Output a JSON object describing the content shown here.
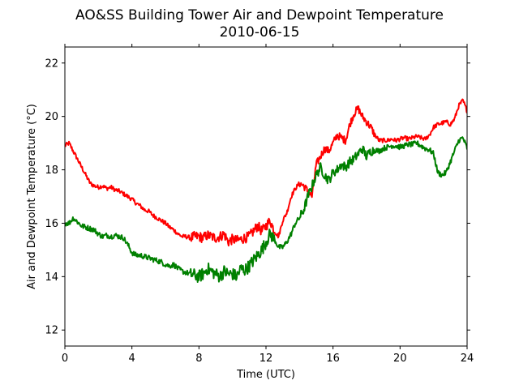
{
  "chart_data": {
    "type": "line",
    "title": "AO&SS Building Tower Air and Dewpoint Temperature",
    "subtitle": "2010-06-15",
    "xlabel": "Time (UTC)",
    "ylabel": "Air and Dewpoint Temperature (°C)",
    "xlim": [
      0,
      24
    ],
    "ylim": [
      11.4,
      22.6
    ],
    "xticks": [
      0,
      4,
      8,
      12,
      16,
      20,
      24
    ],
    "yticks": [
      12,
      14,
      16,
      18,
      20,
      22
    ],
    "grid": false,
    "series": [
      {
        "color": "#ff0000",
        "x": [
          0,
          0.25,
          0.5,
          0.75,
          1,
          1.25,
          1.5,
          1.75,
          2,
          2.25,
          2.5,
          2.75,
          3,
          3.25,
          3.5,
          3.75,
          4,
          4.25,
          4.5,
          4.75,
          5,
          5.25,
          5.5,
          5.75,
          6,
          6.25,
          6.5,
          6.75,
          7,
          7.25,
          7.5,
          7.75,
          8,
          8.25,
          8.5,
          8.75,
          9,
          9.25,
          9.5,
          9.75,
          10,
          10.25,
          10.5,
          10.75,
          11,
          11.25,
          11.5,
          11.75,
          12,
          12.25,
          12.5,
          12.75,
          13,
          13.25,
          13.5,
          13.75,
          14,
          14.25,
          14.5,
          14.75,
          15,
          15.25,
          15.5,
          15.75,
          16,
          16.25,
          16.5,
          16.75,
          17,
          17.25,
          17.5,
          17.75,
          18,
          18.25,
          18.5,
          18.75,
          19,
          19.25,
          19.5,
          19.75,
          20,
          20.25,
          20.5,
          20.75,
          21,
          21.25,
          21.5,
          21.75,
          22,
          22.25,
          22.5,
          22.75,
          23,
          23.25,
          23.5,
          23.75,
          24
        ],
        "y": [
          18.9,
          19.0,
          18.7,
          18.4,
          18.1,
          17.8,
          17.5,
          17.4,
          17.35,
          17.4,
          17.3,
          17.35,
          17.25,
          17.2,
          17.1,
          17.0,
          16.9,
          16.75,
          16.65,
          16.5,
          16.45,
          16.3,
          16.2,
          16.1,
          16.0,
          15.85,
          15.75,
          15.6,
          15.5,
          15.5,
          15.45,
          15.5,
          15.5,
          15.45,
          15.55,
          15.5,
          15.45,
          15.5,
          15.6,
          15.3,
          15.4,
          15.35,
          15.4,
          15.45,
          15.5,
          15.7,
          15.9,
          15.7,
          15.9,
          16.1,
          15.7,
          15.5,
          16.1,
          16.4,
          17.0,
          17.3,
          17.5,
          17.4,
          17.2,
          17.0,
          18.2,
          18.5,
          18.8,
          18.7,
          19.0,
          19.3,
          19.2,
          19.1,
          19.7,
          20.1,
          20.3,
          20.0,
          19.8,
          19.6,
          19.3,
          19.1,
          19.1,
          19.1,
          19.15,
          19.1,
          19.15,
          19.2,
          19.15,
          19.2,
          19.25,
          19.2,
          19.15,
          19.3,
          19.6,
          19.7,
          19.75,
          19.8,
          19.7,
          19.9,
          20.4,
          20.6,
          20.2
        ],
        "noise": 0.08
      },
      {
        "color": "#008000",
        "x": [
          0,
          0.25,
          0.5,
          0.75,
          1,
          1.25,
          1.5,
          1.75,
          2,
          2.25,
          2.5,
          2.75,
          3,
          3.25,
          3.5,
          3.75,
          4,
          4.25,
          4.5,
          4.75,
          5,
          5.25,
          5.5,
          5.75,
          6,
          6.25,
          6.5,
          6.75,
          7,
          7.25,
          7.5,
          7.75,
          8,
          8.25,
          8.5,
          8.75,
          9,
          9.25,
          9.5,
          9.75,
          10,
          10.25,
          10.5,
          10.75,
          11,
          11.25,
          11.5,
          11.75,
          12,
          12.25,
          12.5,
          12.75,
          13,
          13.25,
          13.5,
          13.75,
          14,
          14.25,
          14.5,
          14.75,
          15,
          15.25,
          15.5,
          15.75,
          16,
          16.25,
          16.5,
          16.75,
          17,
          17.25,
          17.5,
          17.75,
          18,
          18.25,
          18.5,
          18.75,
          19,
          19.25,
          19.5,
          19.75,
          20,
          20.25,
          20.5,
          20.75,
          21,
          21.25,
          21.5,
          21.75,
          22,
          22.25,
          22.5,
          22.75,
          23,
          23.25,
          23.5,
          23.75,
          24
        ],
        "y": [
          16.0,
          16.0,
          16.2,
          16.05,
          15.9,
          15.85,
          15.8,
          15.75,
          15.6,
          15.5,
          15.55,
          15.5,
          15.55,
          15.5,
          15.45,
          15.2,
          14.9,
          14.8,
          14.8,
          14.75,
          14.7,
          14.65,
          14.6,
          14.55,
          14.45,
          14.4,
          14.45,
          14.3,
          14.2,
          14.15,
          14.1,
          14.05,
          14.0,
          14.1,
          14.3,
          14.2,
          14.1,
          14.0,
          14.2,
          14.1,
          14.1,
          14.0,
          14.3,
          14.25,
          14.4,
          14.6,
          14.8,
          15.0,
          15.3,
          15.6,
          15.4,
          15.1,
          15.1,
          15.3,
          15.6,
          16.0,
          16.2,
          16.5,
          17.0,
          17.4,
          17.8,
          18.1,
          17.8,
          17.6,
          17.9,
          18.0,
          18.2,
          18.1,
          18.3,
          18.4,
          18.6,
          18.8,
          18.5,
          18.7,
          18.75,
          18.7,
          18.8,
          18.85,
          18.9,
          18.9,
          18.85,
          18.9,
          18.95,
          18.95,
          19.0,
          18.9,
          18.8,
          18.75,
          18.6,
          17.9,
          17.8,
          17.9,
          18.3,
          18.7,
          19.1,
          19.2,
          18.8
        ],
        "noise": 0.1
      }
    ]
  }
}
